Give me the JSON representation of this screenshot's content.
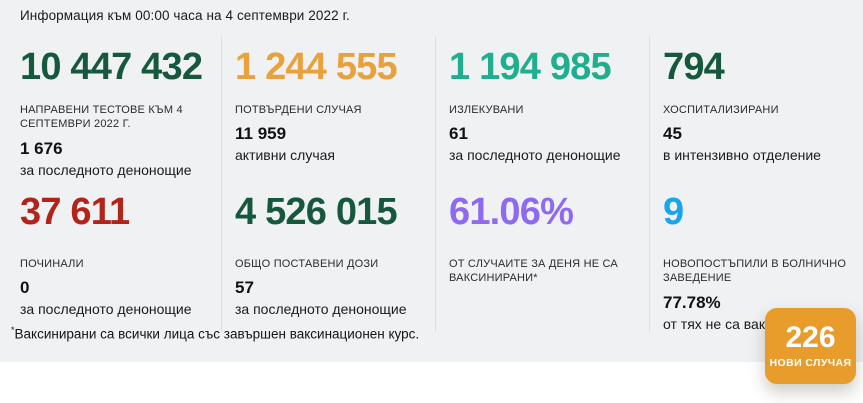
{
  "header": {
    "info_line": "Информация към 00:00 часа на 4 септември 2022 г."
  },
  "colors": {
    "background_top": "#eff1f3",
    "background_bottom": "#ffffff",
    "divider": "#dcdfe2",
    "green": "#16583e",
    "orange": "#e9a13b",
    "teal": "#1fae8e",
    "red": "#b0241c",
    "purple": "#8d6af0",
    "blue": "#18a6ea",
    "badge_orange": "#e89c2c"
  },
  "stats": {
    "rows": [
      [
        {
          "value": "10 447 432",
          "color": "#16583e",
          "label": "НАПРАВЕНИ ТЕСТОВЕ КЪМ 4 СЕПТЕМВРИ 2022 Г.",
          "sub_value": "1 676",
          "sub_label": "за последното денонощие"
        },
        {
          "value": "1 244 555",
          "color": "#e9a13b",
          "label": "ПОТВЪРДЕНИ СЛУЧАЯ",
          "sub_value": "11 959",
          "sub_label": "активни случая"
        },
        {
          "value": "1 194 985",
          "color": "#1fae8e",
          "label": "ИЗЛЕКУВАНИ",
          "sub_value": "61",
          "sub_label": "за последното денонощие"
        },
        {
          "value": "794",
          "color": "#16583e",
          "label": "ХОСПИТАЛИЗИРАНИ",
          "sub_value": "45",
          "sub_label": "в интензивно отделение"
        }
      ],
      [
        {
          "value": "37 611",
          "color": "#b0241c",
          "label": "ПОЧИНАЛИ",
          "sub_value": "0",
          "sub_label": "за последното денонощие"
        },
        {
          "value": "4 526 015",
          "color": "#16583e",
          "label": "ОБЩО ПОСТАВЕНИ ДОЗИ",
          "sub_value": "57",
          "sub_label": "за последното денонощие"
        },
        {
          "value": "61.06%",
          "color": "#8d6af0",
          "label": "ОТ СЛУЧАИТЕ ЗА ДЕНЯ НЕ СА ВАКСИНИРАНИ*",
          "sub_value": "",
          "sub_label": ""
        },
        {
          "value": "9",
          "color": "#18a6ea",
          "label": "НОВОПОСТЪПИЛИ В БОЛНИЧНО ЗАВЕДЕНИЕ",
          "sub_value": "77.78%",
          "sub_label": "от тях не са ваксинирани*"
        }
      ]
    ]
  },
  "footnote": {
    "star": "*",
    "text": "Ваксинирани са всички лица със завършен ваксинационен курс."
  },
  "badge": {
    "value": "226",
    "label": "НОВИ СЛУЧАЯ",
    "color": "#e89c2c"
  }
}
